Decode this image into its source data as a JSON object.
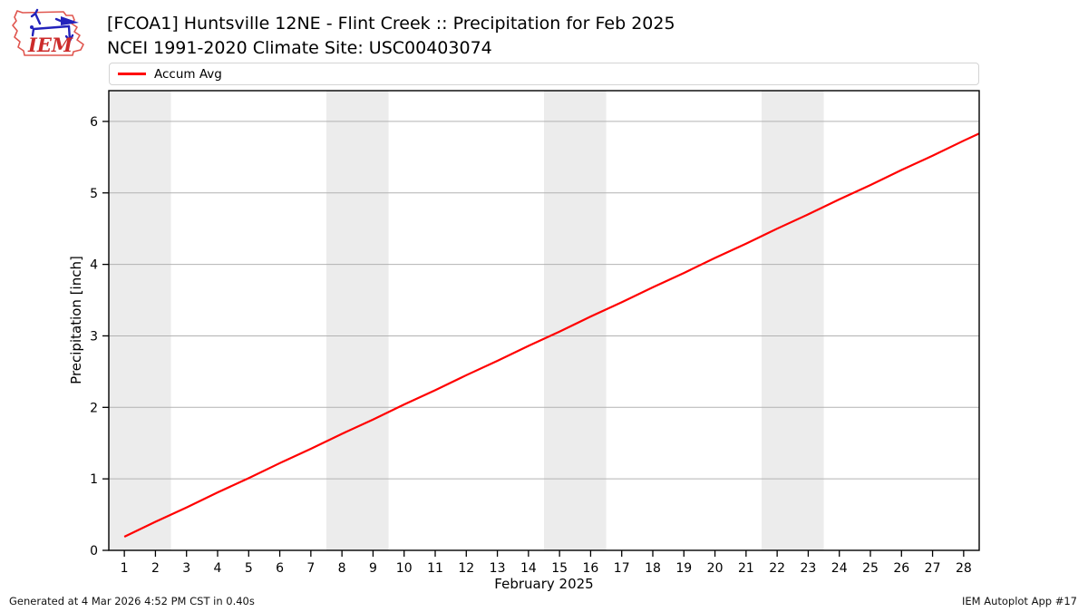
{
  "header": {
    "title": "[FCOA1] Huntsville 12NE - Flint Creek :: Precipitation for Feb 2025",
    "subtitle": "NCEI 1991-2020 Climate Site: USC00403074"
  },
  "logo": {
    "text": "IEM"
  },
  "legend": {
    "items": [
      {
        "label": "Accum Avg",
        "color": "#ff0000"
      }
    ]
  },
  "axes": {
    "y_label": "Precipitation [inch]",
    "x_label": "February 2025"
  },
  "footer": {
    "generated": "Generated at 4 Mar 2026 4:52 PM CST in 0.40s",
    "credit": "IEM Autoplot App #17"
  },
  "chart_data": {
    "type": "line",
    "title": "[FCOA1] Huntsville 12NE - Flint Creek :: Precipitation for Feb 2025",
    "subtitle": "NCEI 1991-2020 Climate Site: USC00403074",
    "xlabel": "February 2025",
    "ylabel": "Precipitation [inch]",
    "xlim": [
      0.5,
      28.5
    ],
    "ylim": [
      0,
      6.43
    ],
    "xticks": [
      1,
      2,
      3,
      4,
      5,
      6,
      7,
      8,
      9,
      10,
      11,
      12,
      13,
      14,
      15,
      16,
      17,
      18,
      19,
      20,
      21,
      22,
      23,
      24,
      25,
      26,
      27,
      28
    ],
    "yticks": [
      0,
      1,
      2,
      3,
      4,
      5,
      6
    ],
    "grid": "horizontal",
    "legend_position": "top",
    "weekend_bands": [
      [
        0.5,
        2.5
      ],
      [
        7.5,
        9.5
      ],
      [
        14.5,
        16.5
      ],
      [
        21.5,
        23.5
      ]
    ],
    "series": [
      {
        "name": "Accum Avg",
        "color": "#ff0000",
        "x": [
          1,
          2,
          3,
          4,
          5,
          6,
          7,
          8,
          9,
          10,
          11,
          12,
          13,
          14,
          15,
          16,
          17,
          18,
          19,
          20,
          21,
          22,
          23,
          24,
          25,
          26,
          27,
          28
        ],
        "values": [
          0.19,
          0.4,
          0.6,
          0.81,
          1.01,
          1.22,
          1.42,
          1.63,
          1.83,
          2.04,
          2.24,
          2.45,
          2.65,
          2.86,
          3.06,
          3.27,
          3.47,
          3.68,
          3.88,
          4.09,
          4.29,
          4.5,
          4.7,
          4.91,
          5.11,
          5.32,
          5.52,
          5.73
        ],
        "end_extension": {
          "x": 28.5,
          "value": 5.83
        }
      }
    ],
    "colors": {
      "band": "#ececec",
      "grid": "#b2b2b2",
      "border": "#000000",
      "ticks": "#000000"
    }
  }
}
